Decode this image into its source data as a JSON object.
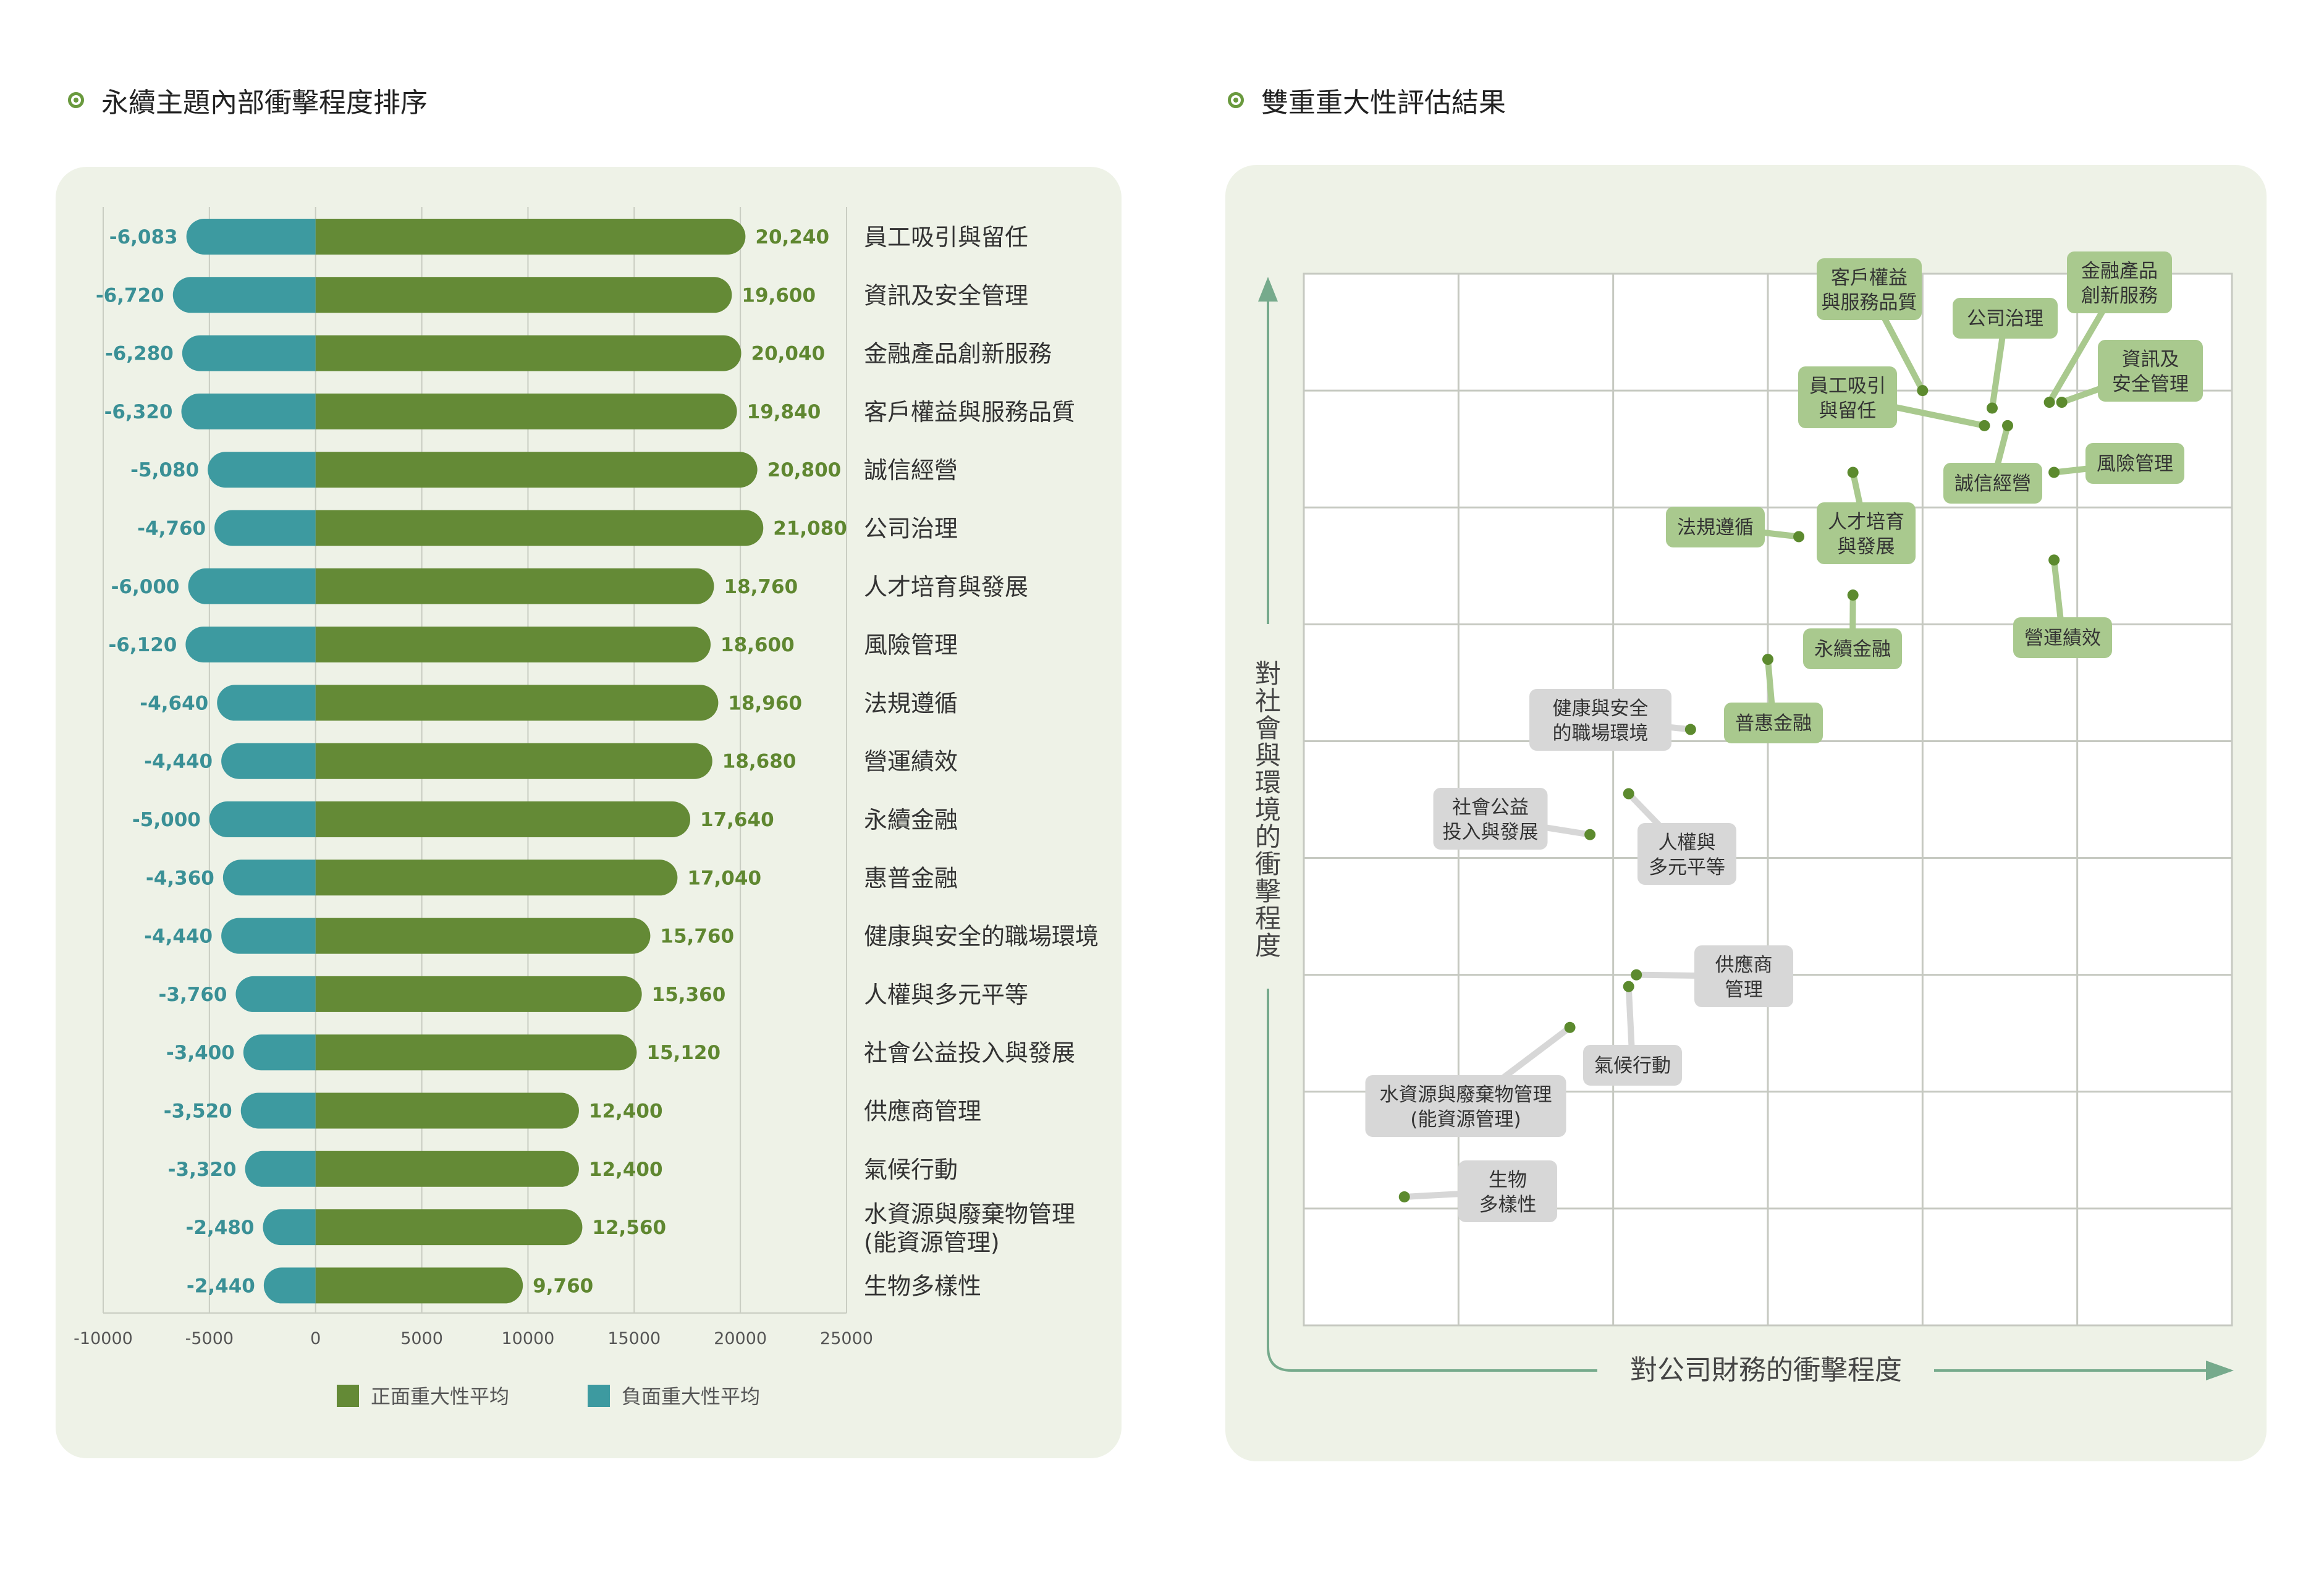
{
  "titles": {
    "left": "永續主題內部衝擊程度排序",
    "right": "雙重重大性評估結果"
  },
  "colors": {
    "positive": "#648a36",
    "negative": "#3d9aa0",
    "label_green": "#5f8730",
    "label_teal": "#3a9096",
    "panel": "#eef2e7",
    "tag_green": "#a9c98e",
    "tag_gray": "#d7d7d7",
    "dot": "#5c8a2e"
  },
  "chart_data": [
    {
      "type": "bar",
      "orientation": "horizontal",
      "categories": [
        "員工吸引與留任",
        "資訊及安全管理",
        "金融產品創新服務",
        "客戶權益與服務品質",
        "誠信經營",
        "公司治理",
        "人才培育與發展",
        "風險管理",
        "法規遵循",
        "營運績效",
        "永續金融",
        "惠普金融",
        "健康與安全的職場環境",
        "人權與多元平等",
        "社會公益投入與發展",
        "供應商管理",
        "氣候行動",
        "水資源與廢棄物管理\n(能資源管理)",
        "生物多樣性"
      ],
      "series": [
        {
          "name": "正面重大性平均",
          "values": [
            20240,
            19600,
            20040,
            19840,
            20800,
            21080,
            18760,
            18600,
            18960,
            18680,
            17640,
            17040,
            15760,
            15360,
            15120,
            12400,
            12400,
            12560,
            9760
          ]
        },
        {
          "name": "負面重大性平均",
          "values": [
            -6083,
            -6720,
            -6280,
            -6320,
            -5080,
            -4760,
            -6000,
            -6120,
            -4640,
            -4440,
            -5000,
            -4360,
            -4440,
            -3760,
            -3400,
            -3520,
            -3320,
            -2480,
            -2440
          ]
        }
      ],
      "value_labels": {
        "positive": [
          "20,240",
          "19,600",
          "20,040",
          "19,840",
          "20,800",
          "21,080",
          "18,760",
          "18,600",
          "18,960",
          "18,680",
          "17,640",
          "17,040",
          "15,760",
          "15,360",
          "15,120",
          "12,400",
          "12,400",
          "12,560",
          "9,760"
        ],
        "negative": [
          "-6,083",
          "-6,720",
          "-6,280",
          "-6,320",
          "-5,080",
          "-4,760",
          "-6,000",
          "-6,120",
          "-4,640",
          "-4,440",
          "-5,000",
          "-4,360",
          "-4,440",
          "-3,760",
          "-3,400",
          "-3,520",
          "-3,320",
          "-2,480",
          "-2,440"
        ]
      },
      "xlim": [
        -10000,
        25000
      ],
      "x_ticks": [
        -10000,
        -5000,
        0,
        5000,
        10000,
        15000,
        20000,
        25000
      ],
      "x_tick_labels": [
        "-10000",
        "-5000",
        "0",
        "5000",
        "10000",
        "15000",
        "20000",
        "25000"
      ],
      "legend": [
        "正面重大性平均",
        "負面重大性平均"
      ],
      "legend_placement": "bottom",
      "grid": true
    },
    {
      "type": "scatter",
      "xlabel": "對公司財務的衝擊程度",
      "ylabel": "對社會與環境的衝擊程度",
      "xlim": [
        0,
        6
      ],
      "ylim": [
        0,
        9
      ],
      "grid": true,
      "grid_columns": 6,
      "grid_rows": 9,
      "points": [
        {
          "label": "客戶權益\n與服務品質",
          "x": 4.0,
          "y": 8.0,
          "group": "green"
        },
        {
          "label": "公司治理",
          "x": 4.45,
          "y": 7.85,
          "group": "green"
        },
        {
          "label": "金融產品\n創新服務",
          "x": 4.82,
          "y": 7.9,
          "group": "green"
        },
        {
          "label": "資訊及\n安全管理",
          "x": 4.9,
          "y": 7.9,
          "group": "green"
        },
        {
          "label": "員工吸引\n與留任",
          "x": 4.4,
          "y": 7.7,
          "group": "green"
        },
        {
          "label": "誠信經營",
          "x": 4.55,
          "y": 7.7,
          "group": "green"
        },
        {
          "label": "風險管理",
          "x": 4.85,
          "y": 7.3,
          "group": "green"
        },
        {
          "label": "人才培育\n與發展",
          "x": 3.55,
          "y": 7.3,
          "group": "green"
        },
        {
          "label": "法規遵循",
          "x": 3.2,
          "y": 6.75,
          "group": "green"
        },
        {
          "label": "營運績效",
          "x": 4.85,
          "y": 6.55,
          "group": "green"
        },
        {
          "label": "永續金融",
          "x": 3.55,
          "y": 6.25,
          "group": "green"
        },
        {
          "label": "普惠金融",
          "x": 3.0,
          "y": 5.7,
          "group": "green"
        },
        {
          "label": "健康與安全\n的職場環境",
          "x": 2.5,
          "y": 5.1,
          "group": "gray"
        },
        {
          "label": "人權與\n多元平等",
          "x": 2.1,
          "y": 4.55,
          "group": "gray"
        },
        {
          "label": "社會公益\n投入與發展",
          "x": 1.85,
          "y": 4.2,
          "group": "gray"
        },
        {
          "label": "供應商\n管理",
          "x": 2.15,
          "y": 3.0,
          "group": "gray"
        },
        {
          "label": "氣候行動",
          "x": 2.1,
          "y": 2.9,
          "group": "gray"
        },
        {
          "label": "水資源與廢棄物管理\n(能資源管理)",
          "x": 1.72,
          "y": 2.55,
          "group": "gray"
        },
        {
          "label": "生物\n多樣性",
          "x": 0.65,
          "y": 1.1,
          "group": "gray"
        }
      ]
    }
  ]
}
